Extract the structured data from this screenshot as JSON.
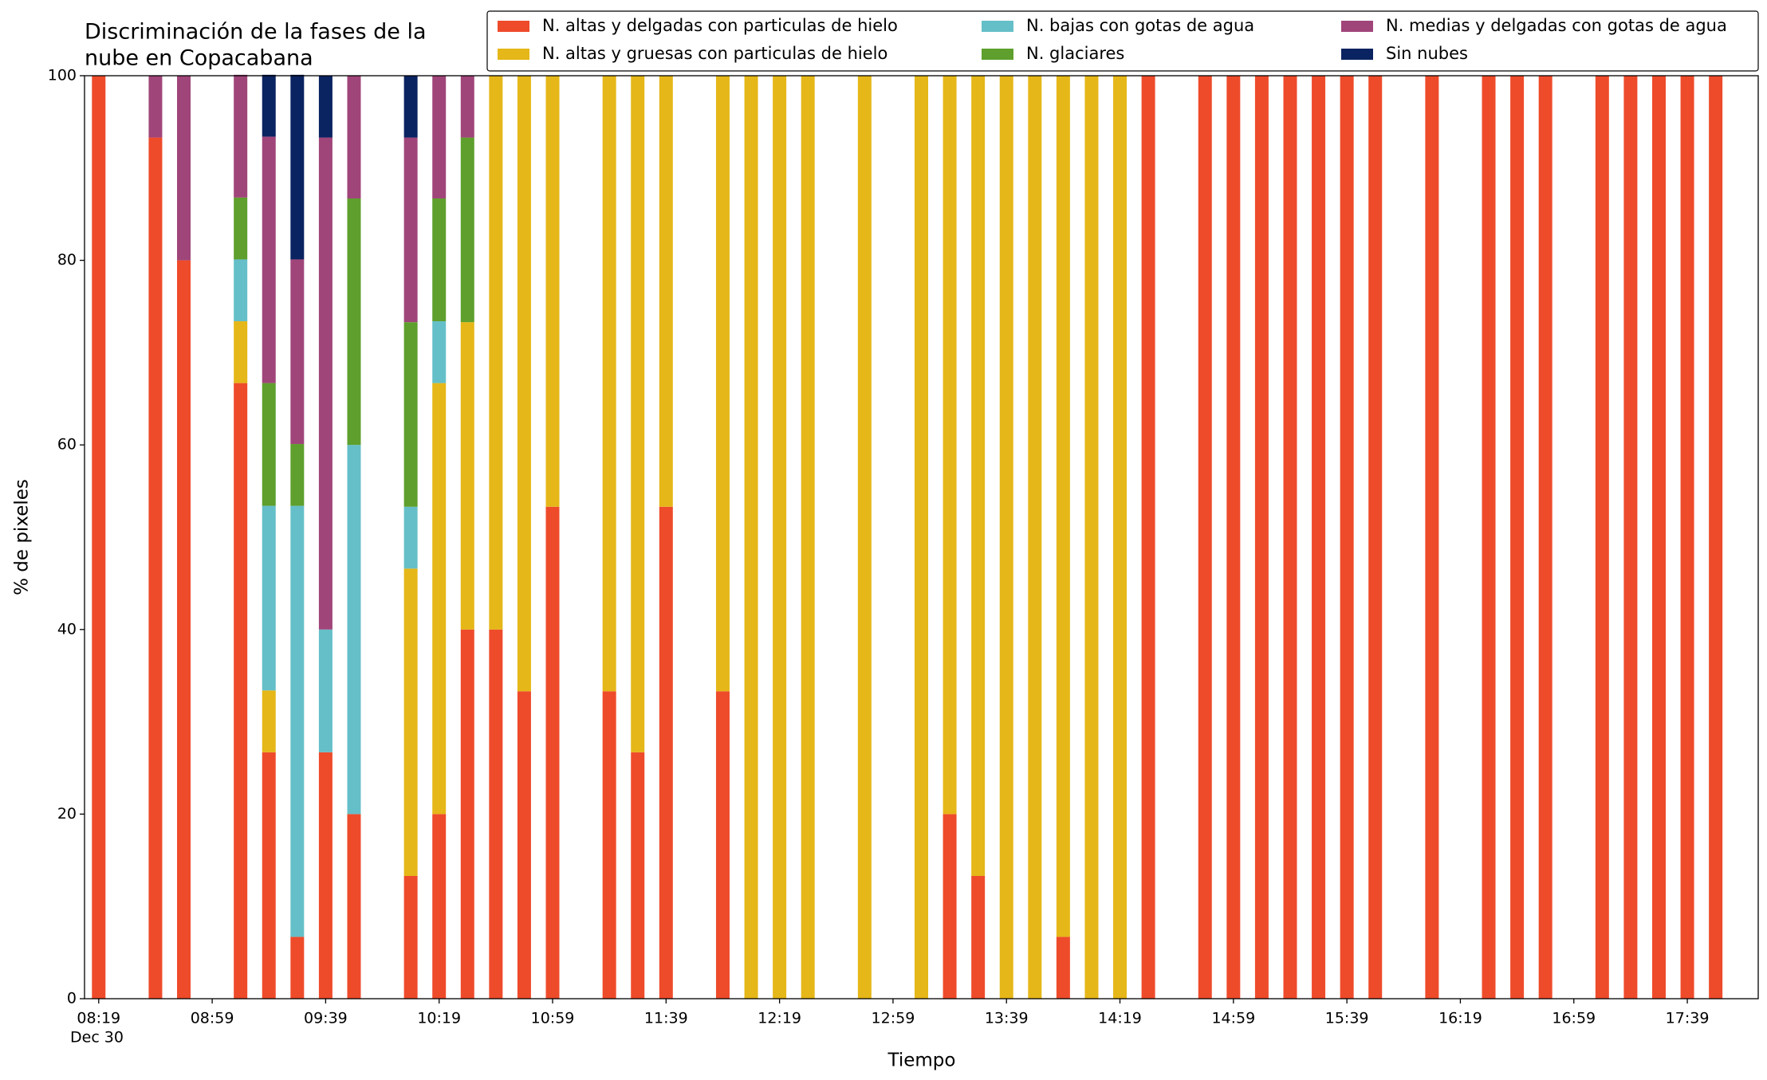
{
  "chart_data": {
    "type": "stacked_bar",
    "title": [
      "Discriminación de la fases de la",
      "nube en Copacabana"
    ],
    "x_label": "Tiempo",
    "y_label": "% de pixeles",
    "date_label": "Dec 30",
    "x": [
      "08:19",
      "08:39",
      "08:49",
      "09:09",
      "09:19",
      "09:29",
      "09:39",
      "09:49",
      "10:09",
      "10:19",
      "10:29",
      "10:39",
      "10:49",
      "10:59",
      "11:19",
      "11:29",
      "11:39",
      "11:59",
      "12:09",
      "12:19",
      "12:29",
      "12:49",
      "13:09",
      "13:19",
      "13:29",
      "13:39",
      "13:49",
      "13:59",
      "14:09",
      "14:19",
      "14:29",
      "14:49",
      "14:59",
      "15:09",
      "15:19",
      "15:29",
      "15:39",
      "15:49",
      "16:09",
      "16:29",
      "16:39",
      "16:49",
      "17:09",
      "17:19",
      "17:29",
      "17:39",
      "17:49"
    ],
    "series": [
      {
        "name": "N. altas y delgadas con particulas de hielo",
        "color": "#ee4b2b",
        "values": [
          100,
          93.3,
          80,
          66.7,
          26.7,
          6.7,
          26.7,
          20,
          13.3,
          20,
          40,
          40,
          33.3,
          53.3,
          33.3,
          26.7,
          53.3,
          33.3,
          0,
          0,
          0,
          0,
          0,
          20,
          13.3,
          0,
          0,
          6.7,
          0,
          0,
          100,
          100,
          100,
          100,
          100,
          100,
          100,
          100,
          100,
          100,
          100,
          100,
          100,
          100,
          100,
          100,
          100
        ]
      },
      {
        "name": "N. altas y gruesas con particulas de hielo",
        "color": "#e5b718",
        "values": [
          0,
          0,
          0,
          6.7,
          6.7,
          0,
          0,
          0,
          33.3,
          46.7,
          33.3,
          60,
          66.7,
          46.7,
          66.7,
          73.3,
          46.7,
          66.7,
          100,
          100,
          100,
          100,
          100,
          80,
          86.7,
          100,
          100,
          93.3,
          100,
          100,
          0,
          0,
          0,
          0,
          0,
          0,
          0,
          0,
          0,
          0,
          0,
          0,
          0,
          0,
          0,
          0,
          0
        ]
      },
      {
        "name": "N. bajas con gotas de agua",
        "color": "#65bfc8",
        "values": [
          0,
          0,
          0,
          6.7,
          20,
          46.7,
          13.3,
          40,
          6.7,
          6.7,
          0,
          0,
          0,
          0,
          0,
          0,
          0,
          0,
          0,
          0,
          0,
          0,
          0,
          0,
          0,
          0,
          0,
          0,
          0,
          0,
          0,
          0,
          0,
          0,
          0,
          0,
          0,
          0,
          0,
          0,
          0,
          0,
          0,
          0,
          0,
          0,
          0
        ]
      },
      {
        "name": "N. glaciares",
        "color": "#5e9f2d",
        "values": [
          0,
          0,
          0,
          6.7,
          13.3,
          6.7,
          0,
          26.7,
          20,
          13.3,
          20,
          0,
          0,
          0,
          0,
          0,
          0,
          0,
          0,
          0,
          0,
          0,
          0,
          0,
          0,
          0,
          0,
          0,
          0,
          0,
          0,
          0,
          0,
          0,
          0,
          0,
          0,
          0,
          0,
          0,
          0,
          0,
          0,
          0,
          0,
          0,
          0
        ]
      },
      {
        "name": "N. medias y delgadas con gotas de agua",
        "color": "#a0457a",
        "values": [
          0,
          6.7,
          20,
          13.3,
          26.7,
          20,
          53.3,
          13.3,
          20,
          13.3,
          6.7,
          0,
          0,
          0,
          0,
          0,
          0,
          0,
          0,
          0,
          0,
          0,
          0,
          0,
          0,
          0,
          0,
          0,
          0,
          0,
          0,
          0,
          0,
          0,
          0,
          0,
          0,
          0,
          0,
          0,
          0,
          0,
          0,
          0,
          0,
          0,
          0
        ]
      },
      {
        "name": "Sin nubes",
        "color": "#0a2361",
        "values": [
          0,
          0,
          0,
          0,
          6.7,
          20,
          6.7,
          0,
          6.7,
          0,
          0,
          0,
          0,
          0,
          0,
          0,
          0,
          0,
          0,
          0,
          0,
          0,
          0,
          0,
          0,
          0,
          0,
          0,
          0,
          0,
          0,
          0,
          0,
          0,
          0,
          0,
          0,
          0,
          0,
          0,
          0,
          0,
          0,
          0,
          0,
          0,
          0
        ]
      }
    ],
    "xlim": [
      "08:14",
      "18:04"
    ],
    "xticks": [
      "08:19",
      "08:59",
      "09:39",
      "10:19",
      "10:59",
      "11:39",
      "12:19",
      "12:59",
      "13:39",
      "14:19",
      "14:59",
      "15:39",
      "16:19",
      "16:59",
      "17:39"
    ],
    "ylim": [
      0,
      100
    ],
    "yticks": [
      0,
      20,
      40,
      60,
      80,
      100
    ],
    "grid": false
  }
}
